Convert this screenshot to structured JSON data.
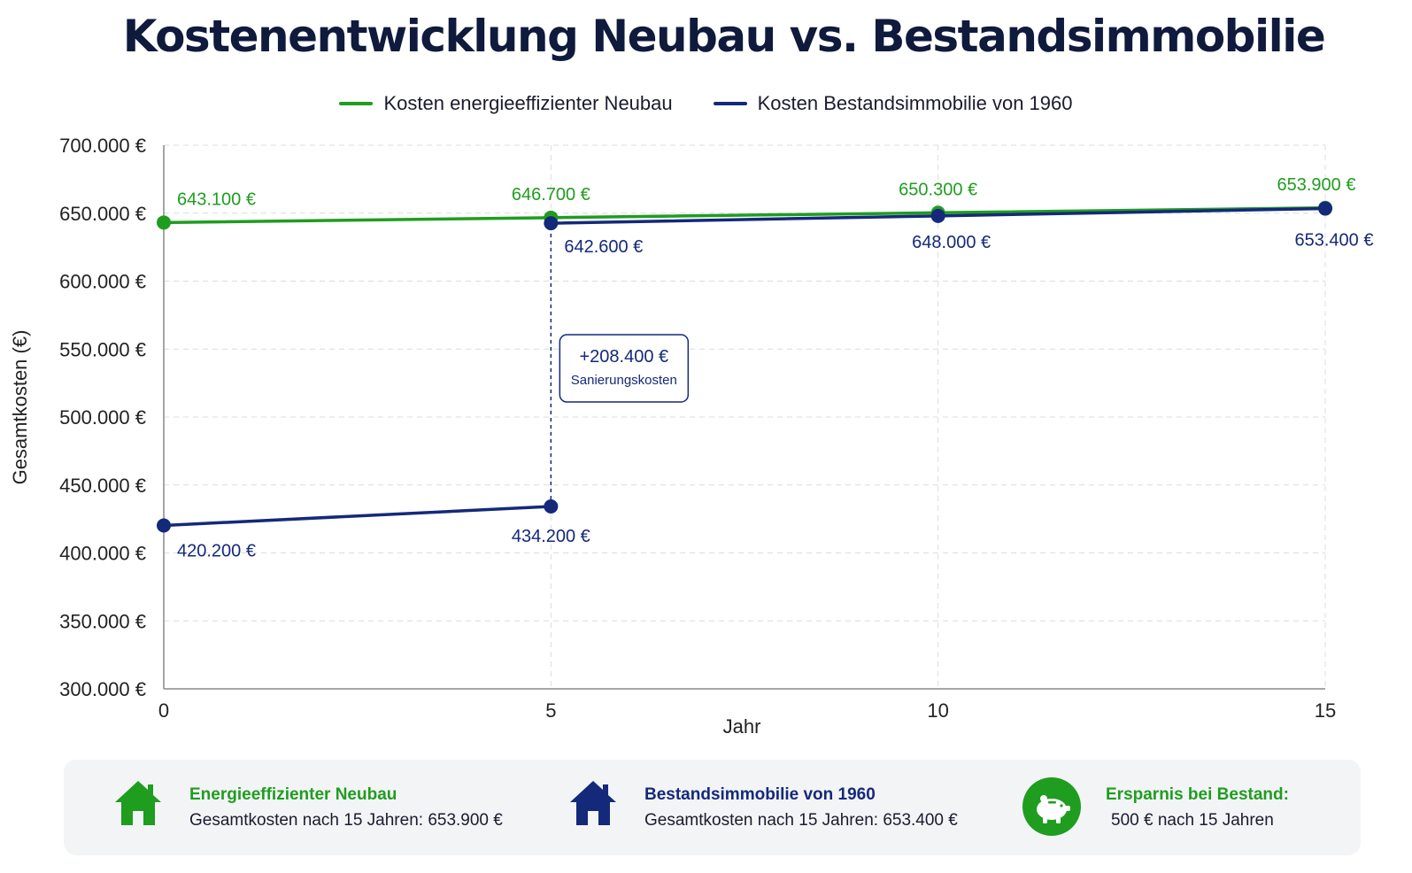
{
  "title": "Kostenentwicklung Neubau vs. Bestandsimmobilie",
  "colors": {
    "green": "#1f9d1f",
    "navy": "#14297a",
    "grid": "#d9d9d9",
    "axis": "#888888"
  },
  "chart_data": {
    "type": "line",
    "xlabel": "Jahr",
    "ylabel": "Gesamtkosten (€)",
    "x_ticks": [
      "0",
      "5",
      "10",
      "15"
    ],
    "xlim": [
      0,
      15
    ],
    "ylim": [
      300000,
      700000
    ],
    "y_ticks": [
      {
        "value": 300000,
        "label": "300.000 €"
      },
      {
        "value": 350000,
        "label": "350.000 €"
      },
      {
        "value": 400000,
        "label": "400.000 €"
      },
      {
        "value": 450000,
        "label": "450.000 €"
      },
      {
        "value": 500000,
        "label": "500.000 €"
      },
      {
        "value": 550000,
        "label": "550.000 €"
      },
      {
        "value": 600000,
        "label": "600.000 €"
      },
      {
        "value": 650000,
        "label": "650.000 €"
      },
      {
        "value": 700000,
        "label": "700.000 €"
      }
    ],
    "grid": true,
    "legend_position": "top-center",
    "series": [
      {
        "name": "Kosten energieeffizienter Neubau",
        "color": "#1f9d1f",
        "points": [
          {
            "x": 0,
            "y": 643100,
            "label": "643.100 €"
          },
          {
            "x": 5,
            "y": 646700,
            "label": "646.700 €"
          },
          {
            "x": 10,
            "y": 650300,
            "label": "650.300 €"
          },
          {
            "x": 15,
            "y": 653900,
            "label": "653.900 €"
          }
        ]
      },
      {
        "name": "Kosten Bestandsimmobilie von 1960",
        "color": "#14297a",
        "segments": [
          [
            {
              "x": 0,
              "y": 420200,
              "label": "420.200 €"
            },
            {
              "x": 5,
              "y": 434200,
              "label": "434.200 €"
            }
          ],
          [
            {
              "x": 5,
              "y": 642600,
              "label": "642.600 €"
            },
            {
              "x": 10,
              "y": 648000,
              "label": "648.000 €"
            },
            {
              "x": 15,
              "y": 653400,
              "label": "653.400 €"
            }
          ]
        ]
      }
    ],
    "annotation": {
      "x": 5,
      "value": "+208.400 €",
      "text": "Sanierungskosten"
    }
  },
  "summary": {
    "neubau": {
      "title": "Energieeffizienter Neubau",
      "text": "Gesamtkosten nach 15 Jahren: 653.900 €",
      "icon": "house-icon"
    },
    "bestand": {
      "title": "Bestandsimmobilie von 1960",
      "text": "Gesamtkosten nach 15 Jahren: 653.400 €",
      "icon": "house-icon"
    },
    "ersparnis": {
      "title": "Ersparnis bei Bestand:",
      "text": "500 € nach 15 Jahren",
      "icon": "piggy-bank-icon"
    }
  }
}
